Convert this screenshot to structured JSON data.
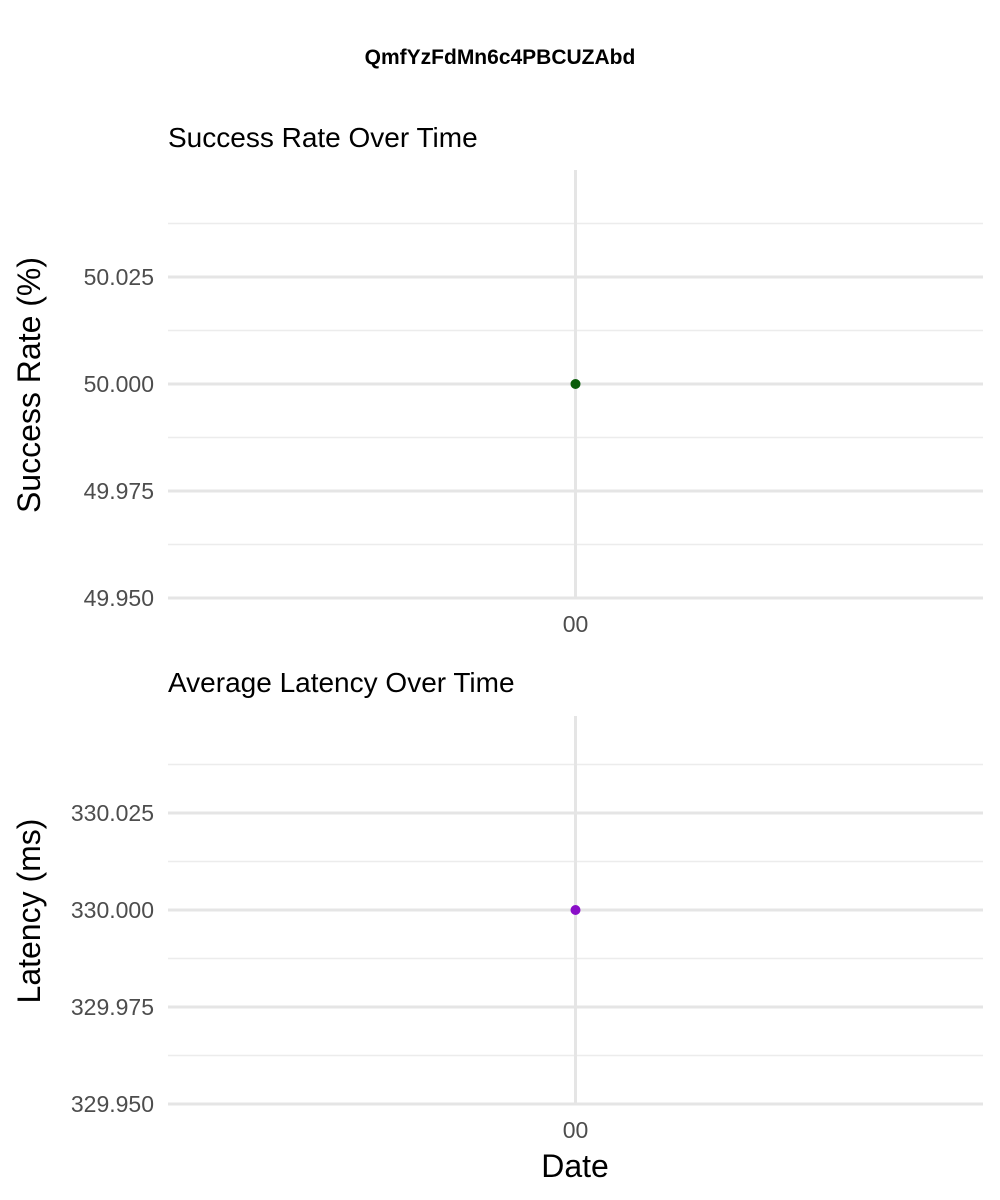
{
  "title": "QmfYzFdMn6c4PBCUZAbd",
  "xlabel": "Date",
  "chart_data": [
    {
      "type": "scatter",
      "title": "Success Rate Over Time",
      "ylabel": "Success Rate (%)",
      "xlabel": "",
      "x": [
        "00"
      ],
      "series": [
        {
          "values": [
            50.0
          ],
          "color": "#0b5d0b"
        }
      ],
      "ylim": [
        49.95,
        50.05
      ],
      "yticks": [
        "49.950",
        "49.975",
        "50.000",
        "50.025"
      ],
      "grid": true
    },
    {
      "type": "scatter",
      "title": "Average Latency Over Time",
      "ylabel": "Latency (ms)",
      "xlabel": "Date",
      "x": [
        "00"
      ],
      "series": [
        {
          "values": [
            330.0
          ],
          "color": "#8a0fc8"
        }
      ],
      "ylim": [
        329.95,
        330.05
      ],
      "yticks": [
        "329.950",
        "329.975",
        "330.000",
        "330.025"
      ],
      "grid": true
    }
  ]
}
